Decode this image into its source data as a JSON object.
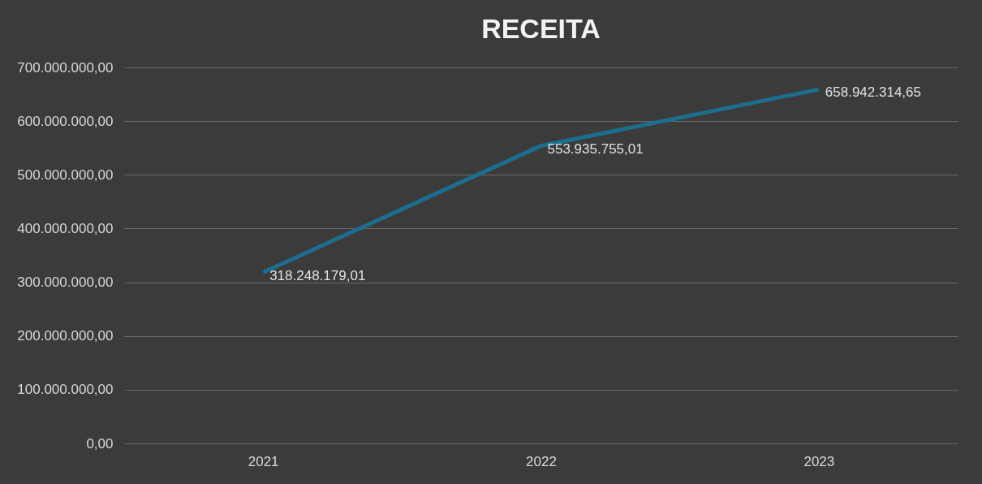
{
  "chart_data": {
    "type": "line",
    "title": "RECEITA",
    "categories": [
      "2021",
      "2022",
      "2023"
    ],
    "series": [
      {
        "color": "#1d6e8e",
        "values": [
          318248179.01,
          553935755.01,
          658942314.65
        ]
      }
    ],
    "value_labels": [
      "318.248.179,01",
      "553.935.755,01",
      "658.942.314,65"
    ],
    "ylim": [
      0,
      700000000
    ],
    "yticks": [
      {
        "value": 0,
        "label": "0,00"
      },
      {
        "value": 100000000,
        "label": "100.000.000,00"
      },
      {
        "value": 200000000,
        "label": "200.000.000,00"
      },
      {
        "value": 300000000,
        "label": "300.000.000,00"
      },
      {
        "value": 400000000,
        "label": "400.000.000,00"
      },
      {
        "value": 500000000,
        "label": "500.000.000,00"
      },
      {
        "value": 600000000,
        "label": "600.000.000,00"
      },
      {
        "value": 700000000,
        "label": "700.000.000,00"
      }
    ],
    "grid": "y",
    "legend": false,
    "marker": "none",
    "line_style": "solid"
  }
}
